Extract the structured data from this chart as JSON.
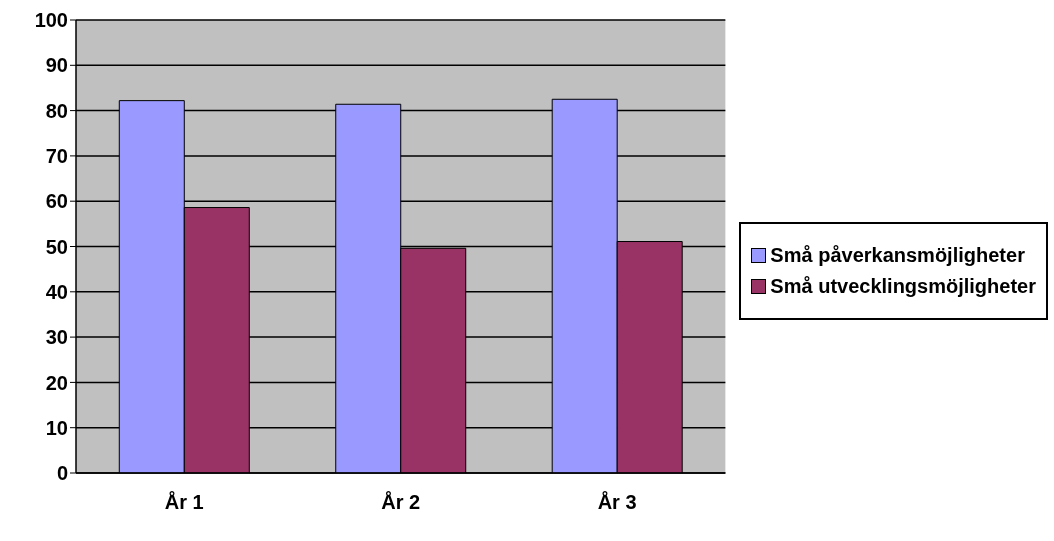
{
  "chart_data": {
    "type": "bar",
    "categories": [
      "År 1",
      "År 2",
      "År 3"
    ],
    "series": [
      {
        "name": "Små påverkansmöjligheter",
        "color": "#9999ff",
        "values": [
          82.2,
          81.4,
          82.5
        ]
      },
      {
        "name": "Små utvecklingsmöjligheter",
        "color": "#993366",
        "values": [
          58.6,
          49.6,
          51.1
        ]
      }
    ],
    "ylim": [
      0,
      100
    ],
    "yticks": [
      0,
      10,
      20,
      30,
      40,
      50,
      60,
      70,
      80,
      90,
      100
    ],
    "grid": "y",
    "legend": "right"
  }
}
